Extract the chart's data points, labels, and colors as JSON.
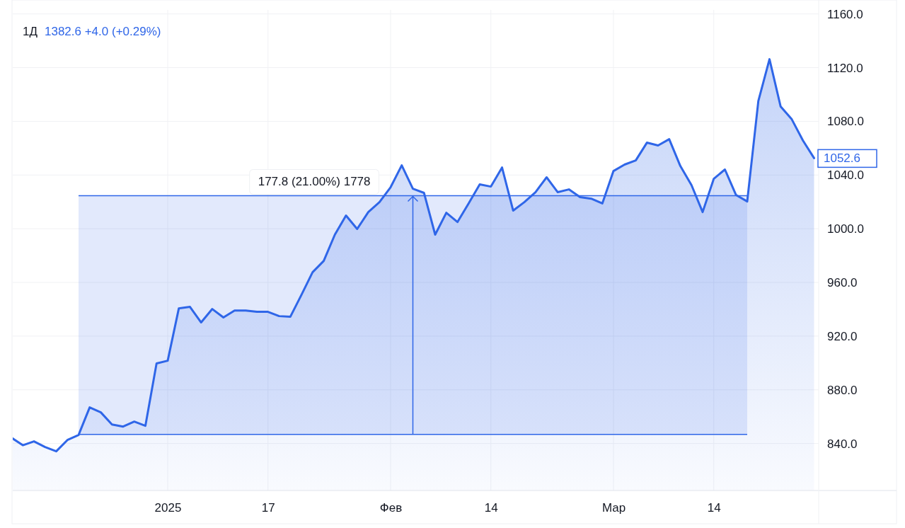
{
  "chart_data": {
    "type": "area",
    "title": "1Д",
    "subtitle": "1382.6 +4.0 (+0.29%)",
    "categories": [
      null,
      null,
      null,
      null,
      null,
      null,
      null,
      null,
      null,
      null,
      null,
      null,
      null,
      null,
      "2025",
      null,
      null,
      null,
      null,
      null,
      null,
      null,
      null,
      "17",
      null,
      null,
      null,
      null,
      null,
      null,
      null,
      null,
      null,
      null,
      "Фев",
      null,
      null,
      null,
      null,
      null,
      null,
      null,
      null,
      "14",
      null,
      null,
      null,
      null,
      null,
      null,
      null,
      null,
      null,
      null,
      "Мар",
      null,
      null,
      null,
      null,
      null,
      null,
      null,
      null,
      "14",
      null,
      null,
      null,
      null,
      null,
      null,
      null,
      null,
      null
    ],
    "series": [
      {
        "color": "#2f66e8",
        "values": [
          844.2,
          838.7,
          841.6,
          837.4,
          834.2,
          842.6,
          846.3,
          866.9,
          863.2,
          854.2,
          852.6,
          856.3,
          853.2,
          899.6,
          901.7,
          940.7,
          941.8,
          930.2,
          940.2,
          933.9,
          939.1,
          939.1,
          938.1,
          938.1,
          934.9,
          934.4,
          950.7,
          967.6,
          976.0,
          995.6,
          1009.8,
          999.8,
          1012.4,
          1019.8,
          1030.9,
          1047.2,
          1029.8,
          1026.7,
          995.6,
          1011.9,
          1005.0,
          1018.8,
          1033.0,
          1031.4,
          1045.6,
          1013.5,
          1019.8,
          1027.2,
          1038.3,
          1027.2,
          1029.3,
          1023.5,
          1022.4,
          1018.8,
          1043.0,
          1047.8,
          1050.9,
          1064.1,
          1062.0,
          1066.7,
          1046.7,
          1032.5,
          1012.4,
          1037.2,
          1044.1,
          1025.1,
          1020.3,
          1095.2,
          1126.3,
          1091.0,
          1081.5,
          1065.7,
          1052.6
        ]
      }
    ],
    "ylim": [
      805,
      1163
    ],
    "yticks": [
      {
        "value": 840,
        "label": "840.0"
      },
      {
        "value": 880,
        "label": "880.0"
      },
      {
        "value": 920,
        "label": "920.0"
      },
      {
        "value": 960,
        "label": "960.0"
      },
      {
        "value": 1000,
        "label": "1000.0"
      },
      {
        "value": 1040,
        "label": "1040.0"
      },
      {
        "value": 1080,
        "label": "1080.0"
      },
      {
        "value": 1120,
        "label": "1120.0"
      },
      {
        "value": 1160,
        "label": "1160.0"
      }
    ],
    "grid": true,
    "bands": [
      {
        "axis": "y",
        "from": 846.8,
        "to": 1024.6,
        "label": "177.8 (21.00%) 1778",
        "color": "#2f66e8"
      }
    ],
    "annotations": [
      "1052.6"
    ]
  }
}
